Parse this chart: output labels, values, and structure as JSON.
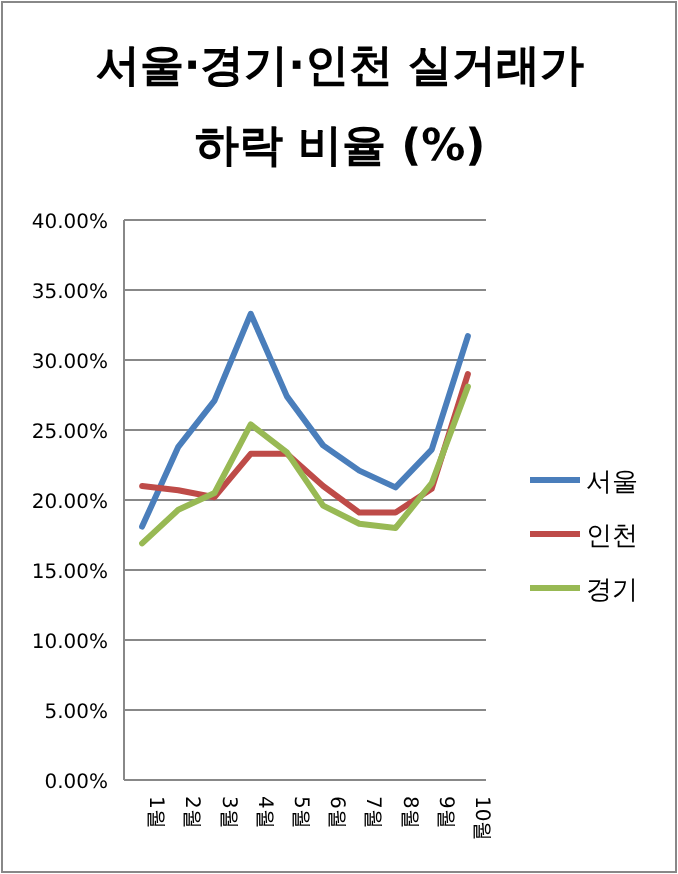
{
  "chart_data": {
    "type": "line",
    "title": "서울·경기·인천 실거래가\n하락 비율 (%)",
    "categories": [
      "1월",
      "2월",
      "3월",
      "4월",
      "5월",
      "6월",
      "7월",
      "8월",
      "9월",
      "10월"
    ],
    "series": [
      {
        "name": "서울",
        "color": "#4a7ebb",
        "values": [
          18.1,
          23.8,
          27.1,
          33.3,
          27.4,
          23.9,
          22.1,
          20.9,
          23.6,
          31.7
        ]
      },
      {
        "name": "인천",
        "color": "#be4b48",
        "values": [
          21.0,
          20.7,
          20.2,
          23.3,
          23.3,
          21.0,
          19.1,
          19.1,
          20.8,
          29.0
        ]
      },
      {
        "name": "경기",
        "color": "#98b954",
        "values": [
          16.9,
          19.3,
          20.5,
          25.4,
          23.4,
          19.6,
          18.3,
          18.0,
          21.2,
          28.1
        ]
      }
    ],
    "ylim": [
      0,
      40
    ],
    "yticks": [
      {
        "value": 0,
        "label": "0.00%"
      },
      {
        "value": 5,
        "label": "5.00%"
      },
      {
        "value": 10,
        "label": "10.00%"
      },
      {
        "value": 15,
        "label": "15.00%"
      },
      {
        "value": 20,
        "label": "20.00%"
      },
      {
        "value": 25,
        "label": "25.00%"
      },
      {
        "value": 30,
        "label": "30.00%"
      },
      {
        "value": 35,
        "label": "35.00%"
      },
      {
        "value": 40,
        "label": "40.00%"
      }
    ],
    "grid": "y",
    "legend": "right",
    "marker": "none",
    "line_style": "solid"
  }
}
